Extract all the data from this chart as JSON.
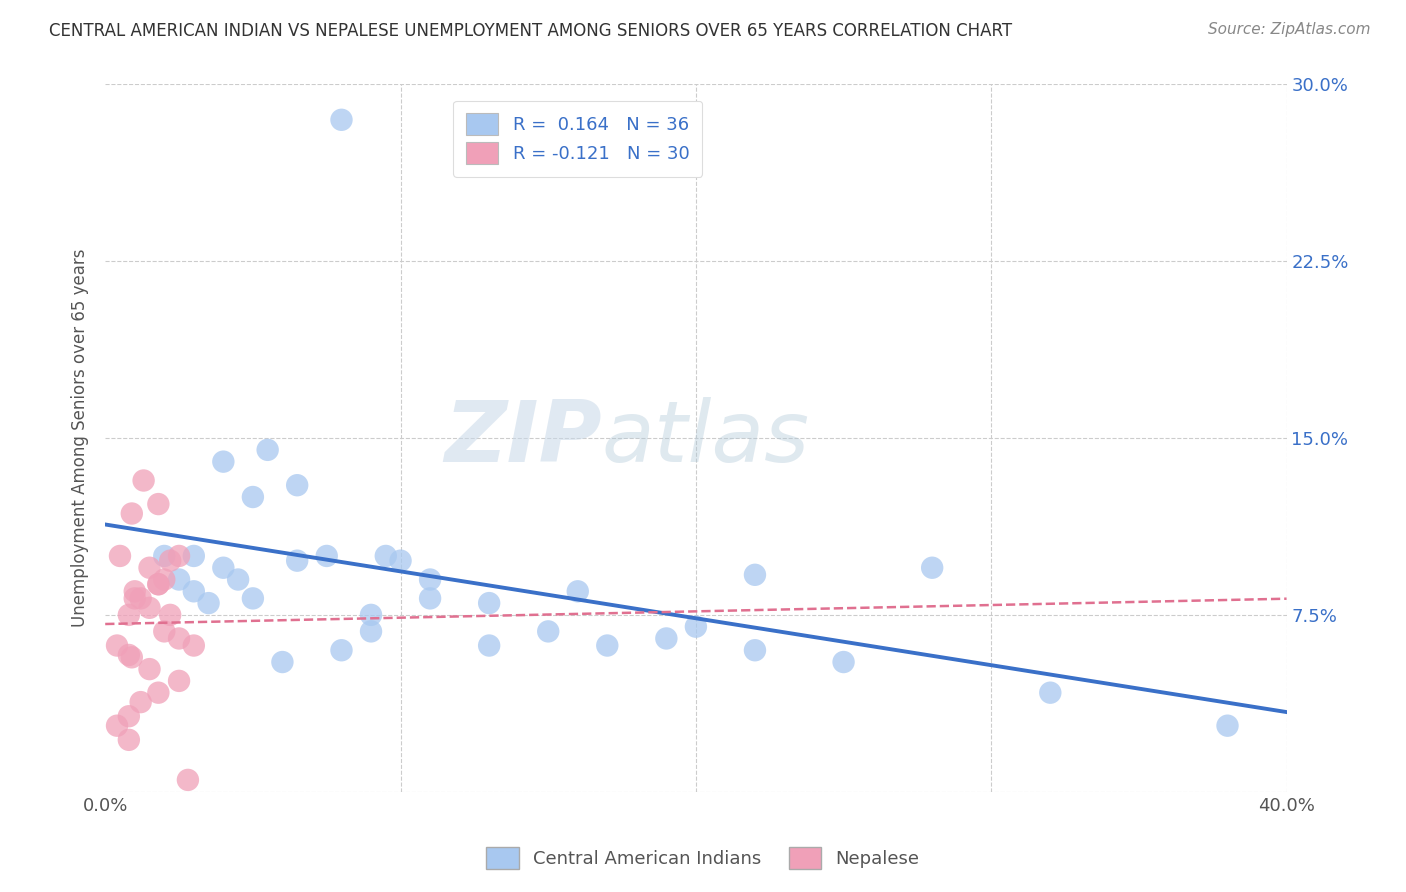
{
  "title": "CENTRAL AMERICAN INDIAN VS NEPALESE UNEMPLOYMENT AMONG SENIORS OVER 65 YEARS CORRELATION CHART",
  "source": "Source: ZipAtlas.com",
  "ylabel": "Unemployment Among Seniors over 65 years",
  "xlim": [
    0.0,
    0.4
  ],
  "ylim": [
    0.0,
    0.3
  ],
  "xticks": [
    0.0,
    0.1,
    0.2,
    0.3,
    0.4
  ],
  "xticklabels": [
    "0.0%",
    "",
    "",
    "",
    "40.0%"
  ],
  "yticks": [
    0.0,
    0.075,
    0.15,
    0.225,
    0.3
  ],
  "yticklabels_right": [
    "",
    "7.5%",
    "15.0%",
    "22.5%",
    "30.0%"
  ],
  "legend_line1": "R =  0.164   N = 36",
  "legend_line2": "R = -0.121   N = 30",
  "color_blue": "#a8c8f0",
  "color_pink": "#f0a0b8",
  "line_blue": "#3a70c8",
  "line_pink": "#e07090",
  "background": "#ffffff",
  "watermark_zip": "ZIP",
  "watermark_atlas": "atlas",
  "blue_scatter_x": [
    0.08,
    0.04,
    0.055,
    0.065,
    0.02,
    0.03,
    0.035,
    0.025,
    0.045,
    0.03,
    0.04,
    0.05,
    0.095,
    0.1,
    0.11,
    0.16,
    0.19,
    0.22,
    0.25,
    0.05,
    0.09,
    0.11,
    0.13,
    0.065,
    0.075,
    0.15,
    0.17,
    0.2,
    0.22,
    0.32,
    0.38,
    0.09,
    0.13,
    0.28,
    0.06,
    0.08
  ],
  "blue_scatter_y": [
    0.285,
    0.14,
    0.145,
    0.13,
    0.1,
    0.085,
    0.08,
    0.09,
    0.09,
    0.1,
    0.095,
    0.125,
    0.1,
    0.098,
    0.09,
    0.085,
    0.065,
    0.06,
    0.055,
    0.082,
    0.075,
    0.082,
    0.08,
    0.098,
    0.1,
    0.068,
    0.062,
    0.07,
    0.092,
    0.042,
    0.028,
    0.068,
    0.062,
    0.095,
    0.055,
    0.06
  ],
  "pink_scatter_x": [
    0.005,
    0.01,
    0.015,
    0.01,
    0.02,
    0.025,
    0.015,
    0.008,
    0.012,
    0.018,
    0.025,
    0.03,
    0.008,
    0.015,
    0.004,
    0.009,
    0.02,
    0.025,
    0.018,
    0.012,
    0.008,
    0.004,
    0.018,
    0.022,
    0.028,
    0.009,
    0.013,
    0.018,
    0.008,
    0.022
  ],
  "pink_scatter_y": [
    0.1,
    0.085,
    0.095,
    0.082,
    0.09,
    0.1,
    0.078,
    0.075,
    0.082,
    0.088,
    0.065,
    0.062,
    0.058,
    0.052,
    0.062,
    0.057,
    0.068,
    0.047,
    0.042,
    0.038,
    0.032,
    0.028,
    0.122,
    0.098,
    0.005,
    0.118,
    0.132,
    0.088,
    0.022,
    0.075
  ]
}
